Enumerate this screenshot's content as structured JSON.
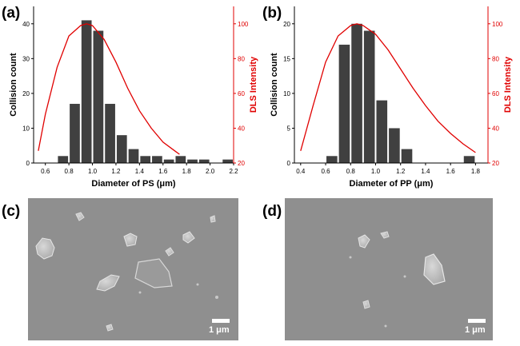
{
  "panels": {
    "a": "(a)",
    "b": "(b)",
    "c": "(c)",
    "d": "(d)"
  },
  "colors": {
    "bar": "#404040",
    "dls": "#e00000",
    "sem": "#8f8f8f"
  },
  "sem": {
    "c": {
      "scale_label": "1 μm"
    },
    "d": {
      "scale_label": "1 μm"
    }
  },
  "chart_data": [
    {
      "type": "bar",
      "xlabel": "Diameter of PS (μm)",
      "ylabel": "Collision count",
      "y2label": "DLS Intensity",
      "xlim": [
        0.5,
        2.2
      ],
      "ylim": [
        0,
        45
      ],
      "y2lim": [
        20,
        110
      ],
      "xticks": [
        0.6,
        0.8,
        1.0,
        1.2,
        1.4,
        1.6,
        1.8,
        2.0,
        2.2
      ],
      "xtick_labels": [
        "0.6",
        "0.8",
        "1.0",
        "1.2",
        "1.4",
        "1.6",
        "1.8",
        "2.0",
        "2.2"
      ],
      "yticks": [
        0,
        10,
        20,
        30,
        40
      ],
      "y2ticks": [
        20,
        40,
        60,
        80,
        100
      ],
      "bin_width": 0.1,
      "series": [
        {
          "x": [
            0.75,
            0.85,
            0.95,
            1.05,
            1.15,
            1.25,
            1.35,
            1.45,
            1.55,
            1.65,
            1.75,
            1.85,
            1.95,
            2.05,
            2.15
          ],
          "values": [
            2,
            17,
            41,
            38,
            17,
            8,
            4,
            2,
            2,
            1,
            2,
            1,
            1,
            0,
            1
          ]
        }
      ],
      "line": {
        "x": [
          0.54,
          0.6,
          0.7,
          0.8,
          0.9,
          0.95,
          1.0,
          1.1,
          1.2,
          1.3,
          1.4,
          1.5,
          1.6,
          1.7,
          1.74
        ],
        "y": [
          27,
          48,
          75,
          93,
          99,
          100,
          99,
          91,
          78,
          63,
          50,
          40,
          32,
          27,
          25
        ]
      }
    },
    {
      "type": "bar",
      "xlabel": "Diameter of PP (μm)",
      "ylabel": "Collision count",
      "y2label": "DLS Intensity",
      "xlim": [
        0.35,
        1.9
      ],
      "ylim": [
        0,
        22.5
      ],
      "y2lim": [
        20,
        110
      ],
      "xticks": [
        0.4,
        0.6,
        0.8,
        1.0,
        1.2,
        1.4,
        1.6,
        1.8
      ],
      "xtick_labels": [
        "0.4",
        "0.6",
        "0.8",
        "1.0",
        "1.2",
        "1.4",
        "1.6",
        "1.8"
      ],
      "yticks": [
        0,
        5,
        10,
        15,
        20
      ],
      "y2ticks": [
        20,
        40,
        60,
        80,
        100
      ],
      "bin_width": 0.1,
      "series": [
        {
          "x": [
            0.65,
            0.75,
            0.85,
            0.95,
            1.05,
            1.15,
            1.25,
            1.35,
            1.45,
            1.55,
            1.65,
            1.75
          ],
          "values": [
            1,
            17,
            20,
            19,
            9,
            5,
            2,
            0,
            0,
            0,
            0,
            1
          ]
        }
      ],
      "line": {
        "x": [
          0.4,
          0.5,
          0.6,
          0.7,
          0.8,
          0.85,
          0.9,
          1.0,
          1.1,
          1.2,
          1.3,
          1.4,
          1.5,
          1.6,
          1.7,
          1.8
        ],
        "y": [
          27,
          53,
          78,
          93,
          99,
          100,
          99,
          94,
          85,
          74,
          63,
          53,
          44,
          37,
          31,
          26
        ]
      }
    }
  ]
}
